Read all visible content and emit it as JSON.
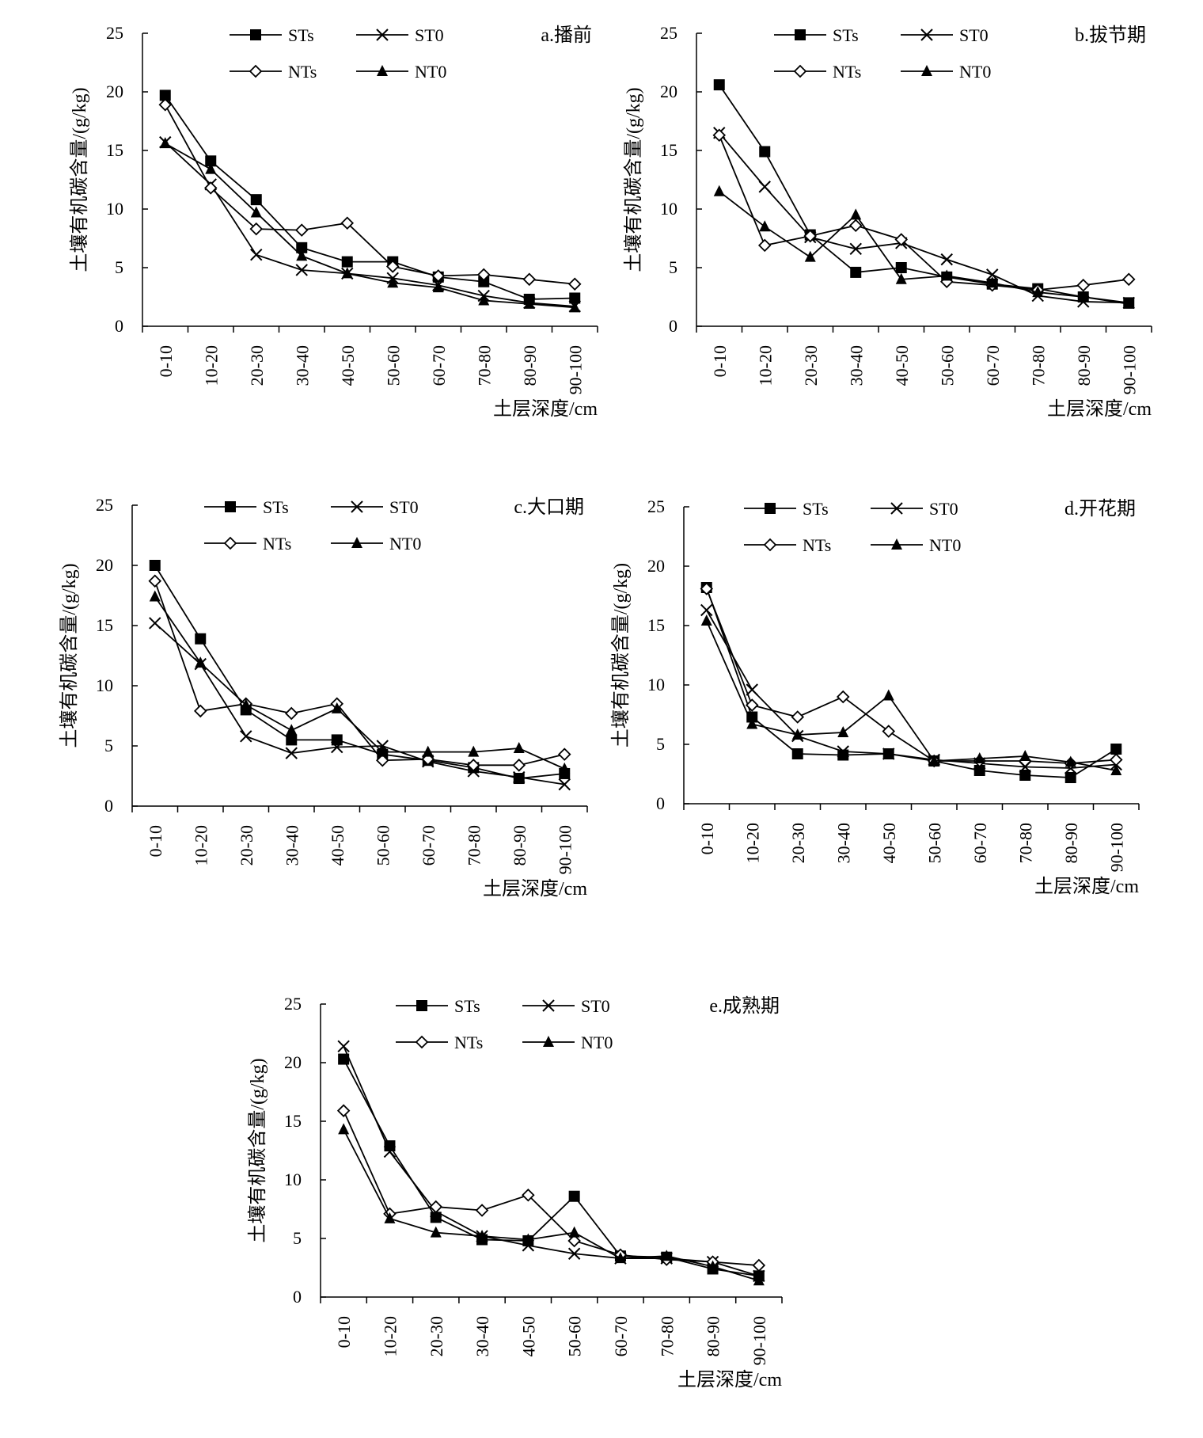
{
  "legend": [
    "STs",
    "ST0",
    "NTs",
    "NT0"
  ],
  "chart_data": [
    {
      "type": "line",
      "panel_label": "a.播前",
      "categories": [
        "0-10",
        "10-20",
        "20-30",
        "30-40",
        "40-50",
        "50-60",
        "60-70",
        "70-80",
        "80-90",
        "90-100"
      ],
      "ylabel": "土壤有机碳含量/(g/kg)",
      "xlabel": "土层深度/cm",
      "ylim": [
        0,
        25
      ],
      "yticks": [
        0,
        5,
        10,
        15,
        20,
        25
      ],
      "series": [
        {
          "name": "STs",
          "marker": "square-filled",
          "values": [
            19.7,
            14.1,
            10.8,
            6.7,
            5.5,
            5.5,
            4.2,
            3.8,
            2.3,
            2.4
          ]
        },
        {
          "name": "ST0",
          "marker": "x",
          "values": [
            15.7,
            12.1,
            6.1,
            4.8,
            4.5,
            4.1,
            3.5,
            2.6,
            2.0,
            1.7
          ]
        },
        {
          "name": "NTs",
          "marker": "diamond-open",
          "values": [
            18.9,
            11.8,
            8.3,
            8.2,
            8.8,
            5.1,
            4.3,
            4.4,
            4.0,
            3.6
          ]
        },
        {
          "name": "NT0",
          "marker": "triangle-filled",
          "values": [
            15.6,
            13.4,
            9.7,
            6.0,
            4.5,
            3.7,
            3.3,
            2.2,
            1.9,
            1.6
          ]
        }
      ]
    },
    {
      "type": "line",
      "panel_label": "b.拔节期",
      "categories": [
        "0-10",
        "10-20",
        "20-30",
        "30-40",
        "40-50",
        "50-60",
        "60-70",
        "70-80",
        "80-90",
        "90-100"
      ],
      "ylabel": "土壤有机碳含量/(g/kg)",
      "xlabel": "土层深度/cm",
      "ylim": [
        0,
        25
      ],
      "yticks": [
        0,
        5,
        10,
        15,
        20,
        25
      ],
      "series": [
        {
          "name": "STs",
          "marker": "square-filled",
          "values": [
            20.6,
            14.9,
            7.8,
            4.6,
            5.0,
            4.2,
            3.6,
            3.2,
            2.5,
            2.0
          ]
        },
        {
          "name": "ST0",
          "marker": "x",
          "values": [
            16.5,
            11.9,
            7.6,
            6.6,
            7.1,
            5.7,
            4.4,
            2.6,
            2.1,
            2.0
          ]
        },
        {
          "name": "NTs",
          "marker": "diamond-open",
          "values": [
            16.3,
            6.9,
            7.7,
            8.6,
            7.4,
            3.8,
            3.5,
            3.1,
            3.5,
            4.0
          ]
        },
        {
          "name": "NT0",
          "marker": "triangle-filled",
          "values": [
            11.5,
            8.5,
            5.9,
            9.5,
            4.0,
            4.3,
            3.7,
            2.9,
            2.5,
            1.9
          ]
        }
      ]
    },
    {
      "type": "line",
      "panel_label": "c.大口期",
      "categories": [
        "0-10",
        "10-20",
        "20-30",
        "30-40",
        "40-50",
        "50-60",
        "60-70",
        "70-80",
        "80-90",
        "90-100"
      ],
      "ylabel": "土壤有机碳含量/(g/kg)",
      "xlabel": "土层深度/cm",
      "ylim": [
        0,
        25
      ],
      "yticks": [
        0,
        5,
        10,
        15,
        20,
        25
      ],
      "series": [
        {
          "name": "STs",
          "marker": "square-filled",
          "values": [
            20.0,
            13.9,
            8.0,
            5.5,
            5.5,
            4.3,
            3.8,
            3.2,
            2.3,
            2.7
          ]
        },
        {
          "name": "ST0",
          "marker": "x",
          "values": [
            15.2,
            11.8,
            5.8,
            4.4,
            4.9,
            5.0,
            3.7,
            2.9,
            2.4,
            1.8
          ]
        },
        {
          "name": "NTs",
          "marker": "diamond-open",
          "values": [
            18.7,
            7.9,
            8.5,
            7.7,
            8.5,
            3.8,
            3.9,
            3.4,
            3.4,
            4.3
          ]
        },
        {
          "name": "NT0",
          "marker": "triangle-filled",
          "values": [
            17.4,
            11.9,
            8.4,
            6.3,
            8.1,
            4.5,
            4.5,
            4.5,
            4.8,
            3.1
          ]
        }
      ]
    },
    {
      "type": "line",
      "panel_label": "d.开花期",
      "categories": [
        "0-10",
        "10-20",
        "20-30",
        "30-40",
        "40-50",
        "50-60",
        "60-70",
        "70-80",
        "80-90",
        "90-100"
      ],
      "ylabel": "土壤有机碳含量/(g/kg)",
      "xlabel": "土层深度/cm",
      "ylim": [
        0,
        25
      ],
      "yticks": [
        0,
        5,
        10,
        15,
        20,
        25
      ],
      "series": [
        {
          "name": "STs",
          "marker": "square-filled",
          "values": [
            18.2,
            7.3,
            4.2,
            4.1,
            4.2,
            3.6,
            2.8,
            2.4,
            2.2,
            4.6
          ]
        },
        {
          "name": "ST0",
          "marker": "x",
          "values": [
            16.3,
            9.6,
            5.7,
            4.4,
            4.2,
            3.7,
            3.4,
            3.1,
            3.0,
            3.3
          ]
        },
        {
          "name": "NTs",
          "marker": "diamond-open",
          "values": [
            18.1,
            8.3,
            7.3,
            9.0,
            6.1,
            3.6,
            3.6,
            3.6,
            3.4,
            3.7
          ]
        },
        {
          "name": "NT0",
          "marker": "triangle-filled",
          "values": [
            15.4,
            6.7,
            5.8,
            6.0,
            9.1,
            3.6,
            3.8,
            4.0,
            3.5,
            2.8
          ]
        }
      ]
    },
    {
      "type": "line",
      "panel_label": "e.成熟期",
      "categories": [
        "0-10",
        "10-20",
        "20-30",
        "30-40",
        "40-50",
        "50-60",
        "60-70",
        "70-80",
        "80-90",
        "90-100"
      ],
      "ylabel": "土壤有机碳含量/(g/kg)",
      "xlabel": "土层深度/cm",
      "ylim": [
        0,
        25
      ],
      "yticks": [
        0,
        5,
        10,
        15,
        20,
        25
      ],
      "series": [
        {
          "name": "STs",
          "marker": "square-filled",
          "values": [
            20.3,
            12.9,
            6.8,
            4.9,
            4.8,
            8.6,
            3.5,
            3.4,
            2.4,
            1.8
          ]
        },
        {
          "name": "ST0",
          "marker": "x",
          "values": [
            21.4,
            12.4,
            7.3,
            5.2,
            4.4,
            3.7,
            3.3,
            3.3,
            3.0,
            1.8
          ]
        },
        {
          "name": "NTs",
          "marker": "diamond-open",
          "values": [
            15.9,
            7.1,
            7.7,
            7.4,
            8.7,
            4.8,
            3.6,
            3.2,
            3.0,
            2.7
          ]
        },
        {
          "name": "NT0",
          "marker": "triangle-filled",
          "values": [
            14.3,
            6.7,
            5.5,
            5.2,
            4.9,
            5.5,
            3.3,
            3.5,
            2.6,
            1.4
          ]
        }
      ]
    }
  ]
}
